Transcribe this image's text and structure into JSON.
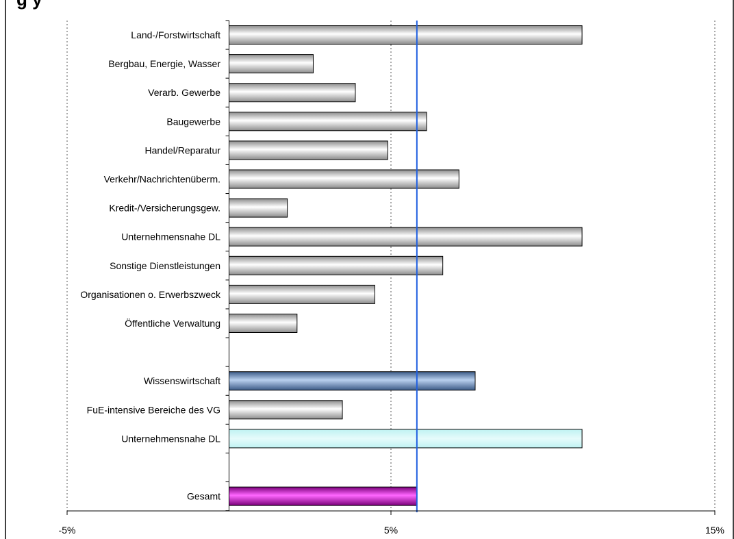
{
  "chart_data": {
    "type": "bar",
    "orientation": "horizontal",
    "title": "",
    "categories": [
      "Land-/Forstwirtschaft",
      "Bergbau, Energie, Wasser",
      "Verarb. Gewerbe",
      "Baugewerbe",
      "Handel/Reparatur",
      "Verkehr/Nachrichtenüberm.",
      "Kredit-/Versicherungsgew.",
      "Unternehmensnahe DL",
      "Sonstige Dienstleistungen",
      "Organisationen o. Erwerbszweck",
      "Öffentliche Verwaltung",
      "",
      "Wissenswirtschaft",
      "FuE-intensive Bereiche des VG",
      "Unternehmensnahe DL",
      "",
      "Gesamt"
    ],
    "values": [
      10.9,
      2.6,
      3.9,
      6.1,
      4.9,
      7.1,
      1.8,
      10.9,
      6.6,
      4.5,
      2.1,
      null,
      7.6,
      3.5,
      10.9,
      null,
      5.8
    ],
    "bar_colors": [
      "#c8c8c8",
      "#c8c8c8",
      "#c8c8c8",
      "#c8c8c8",
      "#c8c8c8",
      "#c8c8c8",
      "#c8c8c8",
      "#c8c8c8",
      "#c8c8c8",
      "#c8c8c8",
      "#c8c8c8",
      null,
      "#6f8fb8",
      "#c8c8c8",
      "#bff2f2",
      null,
      "#cc22cc"
    ],
    "reference_line": {
      "value": 5.8,
      "color": "#1f5fe0"
    },
    "xlim": [
      -5,
      15
    ],
    "x_ticks": [
      "-5%",
      "5%",
      "15%"
    ],
    "x_tick_values": [
      -5,
      5,
      15
    ],
    "grid": "vertical dotted",
    "xlabel": "",
    "ylabel": ""
  },
  "title_fragment": "g                                         y"
}
